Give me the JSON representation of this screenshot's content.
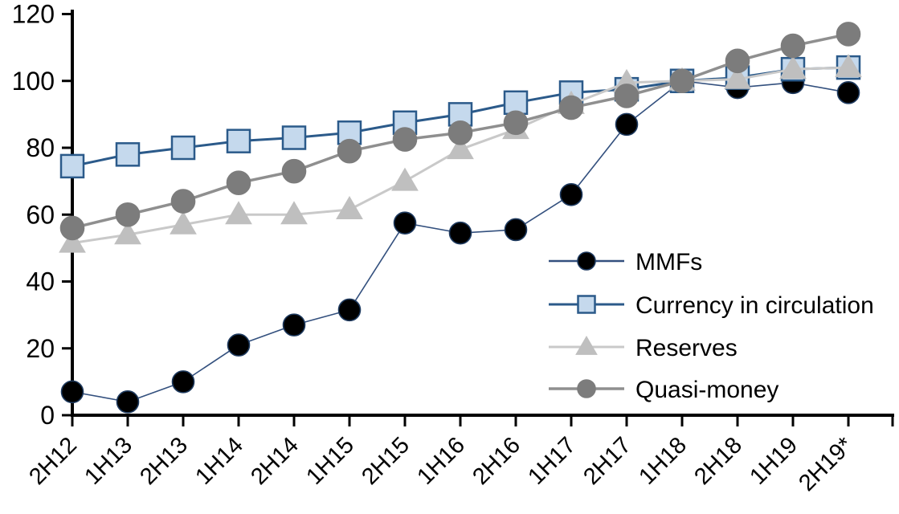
{
  "chart_data": {
    "type": "line",
    "title": "",
    "xlabel": "",
    "ylabel": "",
    "categories": [
      "2H12",
      "1H13",
      "2H13",
      "1H14",
      "2H14",
      "1H15",
      "2H15",
      "1H16",
      "2H16",
      "1H17",
      "2H17",
      "1H18",
      "2H18",
      "1H19",
      "2H19*"
    ],
    "series": [
      {
        "name": "MMFs",
        "marker": "circle",
        "marker_fill": "#000000",
        "marker_stroke": "#1e3a5f",
        "line_color": "#33507e",
        "line_width": 1.6,
        "marker_size": 13.5,
        "values": [
          7,
          4,
          10,
          21,
          27,
          31.5,
          57.5,
          54.5,
          55.5,
          66,
          87,
          100,
          98,
          99.5,
          96.5
        ]
      },
      {
        "name": "Currency in circulation",
        "marker": "square",
        "marker_fill": "#c5d9ed",
        "marker_stroke": "#2b5a8a",
        "line_color": "#2b5a8a",
        "line_width": 3,
        "marker_size": 14,
        "values": [
          74.5,
          78,
          80,
          82,
          83,
          84.5,
          87.5,
          90,
          93.5,
          96.5,
          97.5,
          100,
          101,
          103.5,
          104
        ]
      },
      {
        "name": "Reserves",
        "marker": "triangle",
        "marker_fill": "#bfbfbf",
        "marker_stroke": "#bfbfbf",
        "line_color": "#c9c9c9",
        "line_width": 3,
        "marker_size": 16,
        "values": [
          51.5,
          54,
          57,
          60,
          60,
          61.5,
          70,
          79.5,
          85.5,
          93,
          99.5,
          100,
          100.5,
          103.5,
          104
        ]
      },
      {
        "name": "Quasi-money",
        "marker": "circle",
        "marker_fill": "#7c7c7c",
        "marker_stroke": "#7c7c7c",
        "line_color": "#8f8f8f",
        "line_width": 3.5,
        "marker_size": 14.5,
        "values": [
          56,
          60,
          64,
          69.5,
          73,
          79,
          82.5,
          84.5,
          87.5,
          92,
          95.5,
          100,
          106,
          110.5,
          114
        ]
      }
    ],
    "ylim": [
      0,
      120
    ],
    "yticks": [
      0,
      20,
      40,
      60,
      80,
      100,
      120
    ],
    "grid": false,
    "legend_position": "inside-right",
    "legend_labels": [
      "MMFs",
      "Currency in circulation",
      "Reserves",
      "Quasi-money"
    ],
    "axis_color": "#000000"
  }
}
